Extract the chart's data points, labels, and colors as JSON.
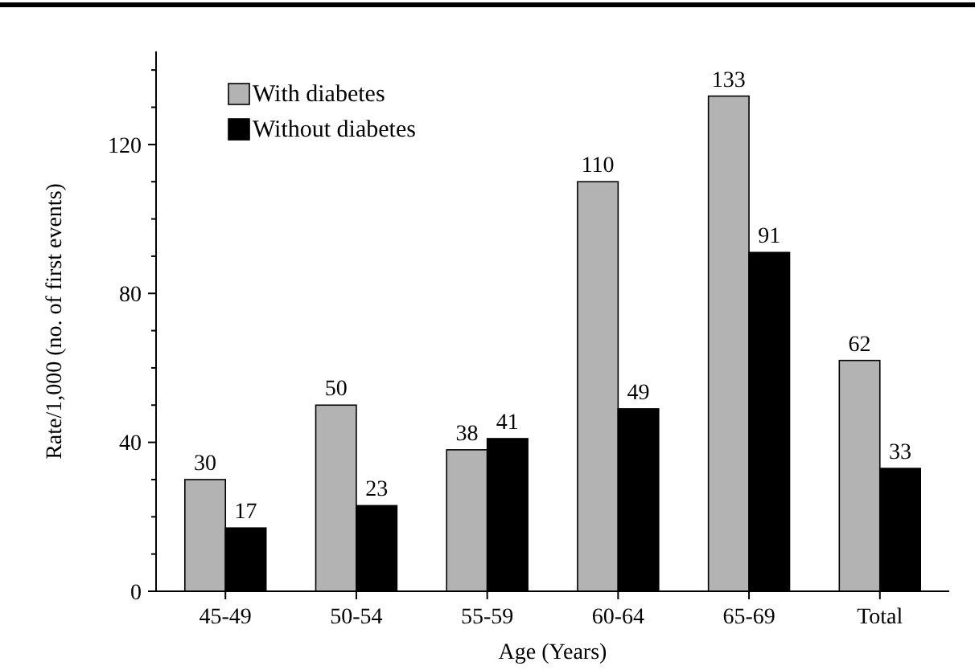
{
  "chart_data": {
    "type": "bar",
    "xlabel": "Age (Years)",
    "ylabel": "Rate/1,000 (no. of first events)",
    "categories": [
      "45-49",
      "50-54",
      "55-59",
      "60-64",
      "65-69",
      "Total"
    ],
    "series": [
      {
        "name": "With diabetes",
        "color": "#b3b3b3",
        "values": [
          30,
          50,
          38,
          110,
          133,
          62
        ]
      },
      {
        "name": "Without diabetes",
        "color": "#000000",
        "values": [
          17,
          23,
          41,
          49,
          91,
          33
        ]
      }
    ],
    "ylim": [
      0,
      145
    ],
    "yticks": [
      0,
      40,
      80,
      120
    ],
    "data_labels": true,
    "legend": "top left",
    "grid": false
  }
}
